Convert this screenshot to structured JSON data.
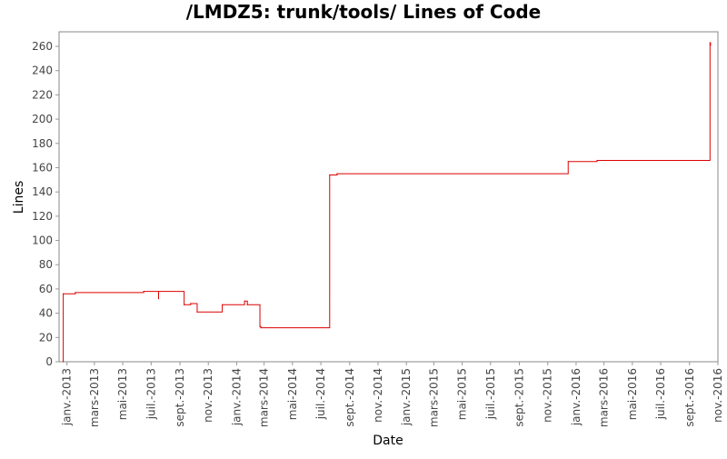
{
  "chart_data": {
    "type": "line",
    "title": "/LMDZ5: trunk/tools/ Lines of Code",
    "xlabel": "Date",
    "ylabel": "Lines",
    "ylim": [
      0,
      272
    ],
    "xlim": [
      "2012-12-15",
      "2016-11-01"
    ],
    "y_ticks": [
      0,
      20,
      40,
      60,
      80,
      100,
      120,
      140,
      160,
      180,
      200,
      220,
      240,
      260
    ],
    "x_ticks": [
      {
        "date": "2013-01-01",
        "label": "janv.-2013"
      },
      {
        "date": "2013-03-01",
        "label": "mars-2013"
      },
      {
        "date": "2013-05-01",
        "label": "mai-2013"
      },
      {
        "date": "2013-07-01",
        "label": "juil.-2013"
      },
      {
        "date": "2013-09-01",
        "label": "sept.-2013"
      },
      {
        "date": "2013-11-01",
        "label": "nov.-2013"
      },
      {
        "date": "2014-01-01",
        "label": "janv.-2014"
      },
      {
        "date": "2014-03-01",
        "label": "mars-2014"
      },
      {
        "date": "2014-05-01",
        "label": "mai-2014"
      },
      {
        "date": "2014-07-01",
        "label": "juil.-2014"
      },
      {
        "date": "2014-09-01",
        "label": "sept.-2014"
      },
      {
        "date": "2014-11-01",
        "label": "nov.-2014"
      },
      {
        "date": "2015-01-01",
        "label": "janv.-2015"
      },
      {
        "date": "2015-03-01",
        "label": "mars-2015"
      },
      {
        "date": "2015-05-01",
        "label": "mai-2015"
      },
      {
        "date": "2015-07-01",
        "label": "juil.-2015"
      },
      {
        "date": "2015-09-01",
        "label": "sept.-2015"
      },
      {
        "date": "2015-11-01",
        "label": "nov.-2015"
      },
      {
        "date": "2016-01-01",
        "label": "janv.-2016"
      },
      {
        "date": "2016-03-01",
        "label": "mars-2016"
      },
      {
        "date": "2016-05-01",
        "label": "mai-2016"
      },
      {
        "date": "2016-07-01",
        "label": "juil.-2016"
      },
      {
        "date": "2016-09-01",
        "label": "sept.-2016"
      },
      {
        "date": "2016-11-01",
        "label": "nov.-2016"
      }
    ],
    "grid": false,
    "step": true,
    "colors": {
      "line": "#dd0000",
      "frame": "#888888",
      "tick": "#999999"
    },
    "series": [
      {
        "points": [
          {
            "x": "2012-12-24",
            "y": 0
          },
          {
            "x": "2012-12-24",
            "y": 56
          },
          {
            "x": "2013-01-19",
            "y": 57
          },
          {
            "x": "2013-06-15",
            "y": 58
          },
          {
            "x": "2013-07-17",
            "y": 52
          },
          {
            "x": "2013-07-17",
            "y": 58
          },
          {
            "x": "2013-09-10",
            "y": 47
          },
          {
            "x": "2013-09-24",
            "y": 48
          },
          {
            "x": "2013-10-08",
            "y": 41
          },
          {
            "x": "2013-12-01",
            "y": 47
          },
          {
            "x": "2014-01-18",
            "y": 50
          },
          {
            "x": "2014-01-24",
            "y": 47
          },
          {
            "x": "2014-02-20",
            "y": 29
          },
          {
            "x": "2014-02-22",
            "y": 28
          },
          {
            "x": "2014-07-20",
            "y": 154
          },
          {
            "x": "2014-08-05",
            "y": 155
          },
          {
            "x": "2015-12-15",
            "y": 165
          },
          {
            "x": "2016-02-15",
            "y": 166
          },
          {
            "x": "2016-10-15",
            "y": 263
          },
          {
            "x": "2016-10-16",
            "y": 261
          }
        ]
      }
    ]
  }
}
